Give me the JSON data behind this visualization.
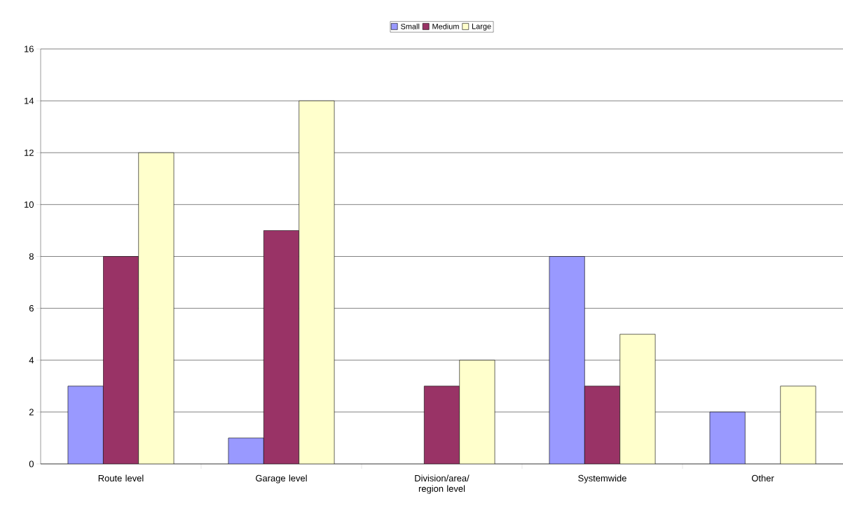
{
  "chart_data": {
    "type": "bar",
    "categories": [
      "Route level",
      "Garage level",
      "Division/area/ region level",
      "Systemwide",
      "Other"
    ],
    "series": [
      {
        "name": "Small",
        "color": "#9999ff",
        "values": [
          3,
          1,
          null,
          8,
          2
        ]
      },
      {
        "name": "Medium",
        "color": "#993366",
        "values": [
          8,
          9,
          3,
          3,
          null
        ]
      },
      {
        "name": "Large",
        "color": "#ffffcc",
        "values": [
          12,
          14,
          4,
          5,
          3
        ]
      }
    ],
    "ylim": [
      0,
      16
    ],
    "yticks": [
      0,
      2,
      4,
      6,
      8,
      10,
      12,
      14,
      16
    ],
    "grid": "y",
    "legend": "top"
  }
}
